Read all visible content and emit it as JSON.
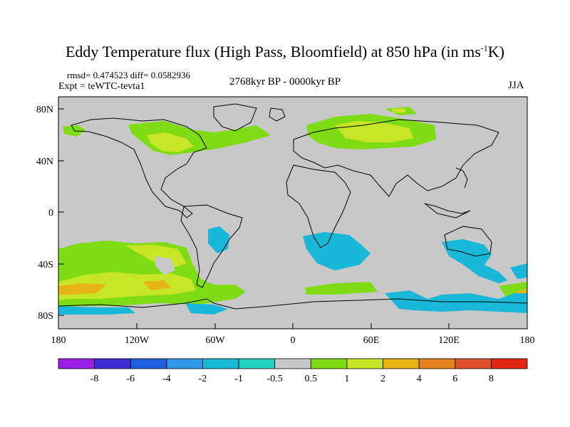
{
  "header": {
    "title_main": "Eddy Temperature flux (High Pass, Bloomfield) at 850 hPa (in ms",
    "title_sup": "-1",
    "title_end": "K)",
    "rmsd_line": "rmsd= 0.474523 diff= 0.0582936",
    "expt_line": "Expt = teWTC-tevta1",
    "period": "2768kyr BP - 0000kyr BP",
    "season": "JJA"
  },
  "axes": {
    "lat_labels": [
      "80N",
      "40N",
      "0",
      "40S",
      "80S"
    ],
    "lon_labels": [
      "180",
      "120W",
      "60W",
      "0",
      "60E",
      "120E",
      "180"
    ]
  },
  "colorbar": {
    "levels": [
      "-8",
      "-6",
      "-4",
      "-2",
      "-1",
      "-0.5",
      "0.5",
      "1",
      "2",
      "4",
      "6",
      "8"
    ],
    "colors": [
      "#9b1ee6",
      "#3c2ed2",
      "#1f5fe0",
      "#2f97e6",
      "#1ab8d8",
      "#24d2c4",
      "#c8c8c8",
      "#7fdc14",
      "#c8e628",
      "#e6b414",
      "#e6821e",
      "#e0502a",
      "#e02814"
    ]
  },
  "map": {
    "ocean_fill": "#c8c8c8",
    "regions": [
      {
        "color": "#7fdc14",
        "shape": "green-north-atlantic"
      },
      {
        "color": "#c8e628",
        "shape": "yellow-north-america"
      },
      {
        "color": "#7fdc14",
        "shape": "green-eurasia"
      },
      {
        "color": "#c8e628",
        "shape": "yellow-eurasia"
      },
      {
        "color": "#7fdc14",
        "shape": "green-south-pacific"
      },
      {
        "color": "#e6b414",
        "shape": "orange-south-pacific"
      },
      {
        "color": "#1ab8d8",
        "shape": "cyan-south-africa"
      },
      {
        "color": "#1ab8d8",
        "shape": "cyan-south-america"
      },
      {
        "color": "#1ab8d8",
        "shape": "cyan-australia"
      },
      {
        "color": "#1ab8d8",
        "shape": "cyan-antarctic-belt"
      }
    ]
  }
}
